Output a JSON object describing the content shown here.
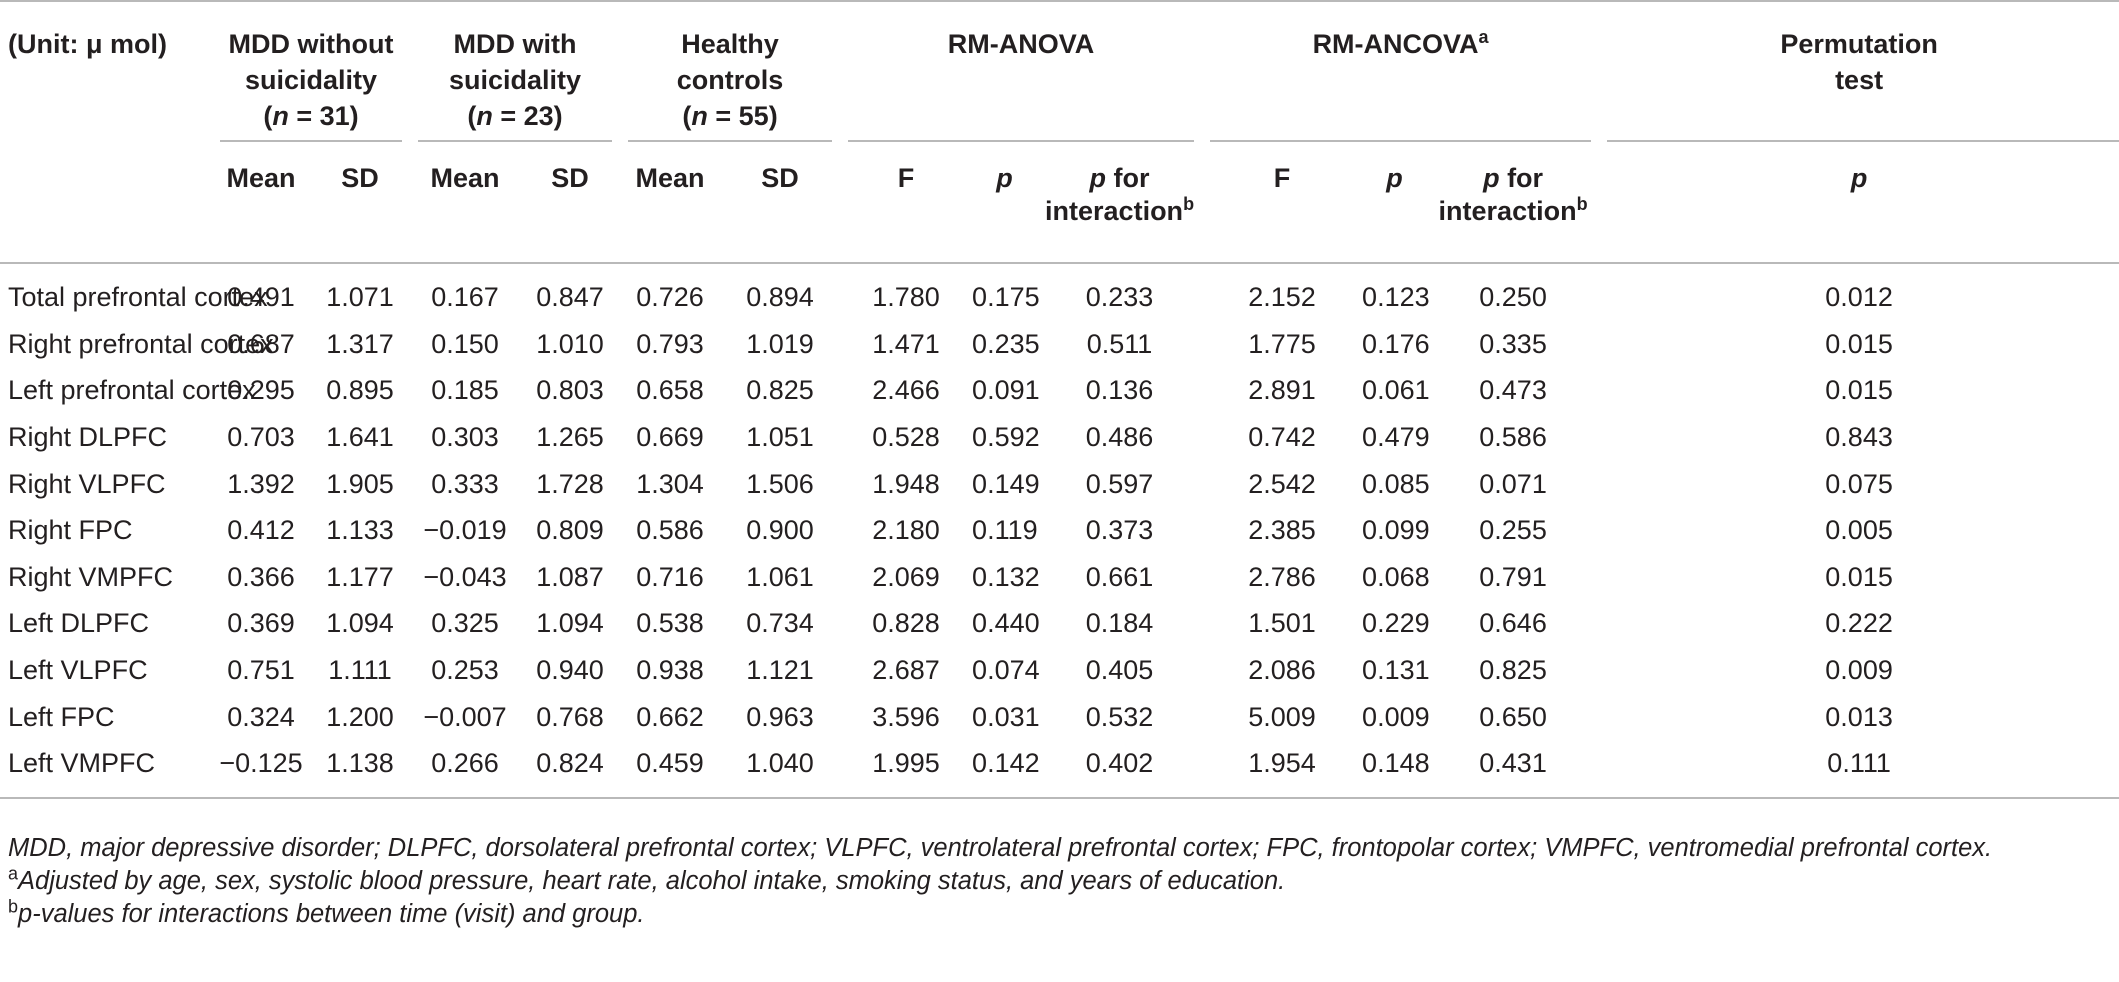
{
  "header": {
    "unit_label": "(Unit: μ mol)",
    "groups": [
      {
        "line1": "MDD without",
        "line2": "suicidality",
        "n_prefix": "(",
        "n_italic": "n",
        "n_suffix": " = 31)"
      },
      {
        "line1": "MDD with",
        "line2": "suicidality",
        "n_prefix": "(",
        "n_italic": "n",
        "n_suffix": " = 23)"
      },
      {
        "line1": "Healthy",
        "line2": "controls",
        "n_prefix": "(",
        "n_italic": "n",
        "n_suffix": " = 55)"
      }
    ],
    "rm_anova": "RM-ANOVA",
    "rm_ancova": "RM-ANCOVA",
    "rm_ancova_sup": "a",
    "permutation_line1": "Permutation",
    "permutation_line2": "test",
    "sub": {
      "mean": "Mean",
      "sd": "SD",
      "f": "F",
      "p": "p",
      "p_for": "p",
      "for_text": " for",
      "interaction": "interaction",
      "interaction_sup": "b"
    }
  },
  "rows": [
    {
      "label": "Total prefrontal cortex",
      "v": [
        "0.491",
        "1.071",
        "0.167",
        "0.847",
        "0.726",
        "0.894",
        "1.780",
        "0.175",
        "0.233",
        "2.152",
        "0.123",
        "0.250",
        "0.012"
      ]
    },
    {
      "label": "Right prefrontal cortex",
      "v": [
        "0.687",
        "1.317",
        "0.150",
        "1.010",
        "0.793",
        "1.019",
        "1.471",
        "0.235",
        "0.511",
        "1.775",
        "0.176",
        "0.335",
        "0.015"
      ]
    },
    {
      "label": "Left prefrontal cortex",
      "v": [
        "0.295",
        "0.895",
        "0.185",
        "0.803",
        "0.658",
        "0.825",
        "2.466",
        "0.091",
        "0.136",
        "2.891",
        "0.061",
        "0.473",
        "0.015"
      ]
    },
    {
      "label": "Right DLPFC",
      "v": [
        "0.703",
        "1.641",
        "0.303",
        "1.265",
        "0.669",
        "1.051",
        "0.528",
        "0.592",
        "0.486",
        "0.742",
        "0.479",
        "0.586",
        "0.843"
      ]
    },
    {
      "label": "Right VLPFC",
      "v": [
        "1.392",
        "1.905",
        "0.333",
        "1.728",
        "1.304",
        "1.506",
        "1.948",
        "0.149",
        "0.597",
        "2.542",
        "0.085",
        "0.071",
        "0.075"
      ]
    },
    {
      "label": "Right FPC",
      "v": [
        "0.412",
        "1.133",
        "−0.019",
        "0.809",
        "0.586",
        "0.900",
        "2.180",
        "0.119",
        "0.373",
        "2.385",
        "0.099",
        "0.255",
        "0.005"
      ]
    },
    {
      "label": "Right VMPFC",
      "v": [
        "0.366",
        "1.177",
        "−0.043",
        "1.087",
        "0.716",
        "1.061",
        "2.069",
        "0.132",
        "0.661",
        "2.786",
        "0.068",
        "0.791",
        "0.015"
      ]
    },
    {
      "label": "Left DLPFC",
      "v": [
        "0.369",
        "1.094",
        "0.325",
        "1.094",
        "0.538",
        "0.734",
        "0.828",
        "0.440",
        "0.184",
        "1.501",
        "0.229",
        "0.646",
        "0.222"
      ]
    },
    {
      "label": "Left VLPFC",
      "v": [
        "0.751",
        "1.111",
        "0.253",
        "0.940",
        "0.938",
        "1.121",
        "2.687",
        "0.074",
        "0.405",
        "2.086",
        "0.131",
        "0.825",
        "0.009"
      ]
    },
    {
      "label": "Left FPC",
      "v": [
        "0.324",
        "1.200",
        "−0.007",
        "0.768",
        "0.662",
        "0.963",
        "3.596",
        "0.031",
        "0.532",
        "5.009",
        "0.009",
        "0.650",
        "0.013"
      ]
    },
    {
      "label": "Left VMPFC",
      "v": [
        "−0.125",
        "1.138",
        "0.266",
        "0.824",
        "0.459",
        "1.040",
        "1.995",
        "0.142",
        "0.402",
        "1.954",
        "0.148",
        "0.431",
        "0.111"
      ]
    }
  ],
  "footnotes": {
    "abbrev": "MDD, major depressive disorder; DLPFC, dorsolateral prefrontal cortex; VLPFC, ventrolateral prefrontal cortex; FPC, frontopolar cortex; VMPFC, ventromedial prefrontal cortex.",
    "a_mark": "a",
    "a_text": "Adjusted by age, sex, systolic blood pressure, heart rate, alcohol intake, smoking status, and years of education.",
    "b_mark": "b",
    "b_text": "p-values for interactions between time (visit) and group."
  }
}
